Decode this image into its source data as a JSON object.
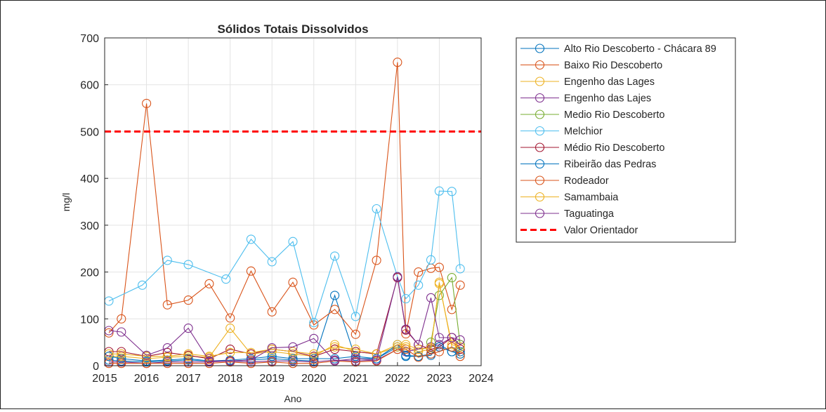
{
  "chart_data": {
    "type": "line",
    "title": "Sólidos Totais Dissolvidos",
    "xlabel": "Ano",
    "ylabel": "mg/l",
    "xlim": [
      2015,
      2024
    ],
    "ylim": [
      0,
      700
    ],
    "xticks": [
      "2015",
      "2016",
      "2017",
      "2018",
      "2019",
      "2020",
      "2021",
      "2022",
      "2023",
      "2024"
    ],
    "yticks": [
      "0",
      "100",
      "200",
      "300",
      "400",
      "500",
      "600",
      "700"
    ],
    "grid": true,
    "legend_position": "outside-right",
    "reference_line": {
      "name": "Valor Orientador",
      "y": 500,
      "color": "#ff0000"
    },
    "series": [
      {
        "name": "Alto Rio Descoberto - Chácara 89",
        "color": "#0072bd",
        "points": [
          [
            2015.1,
            12
          ],
          [
            2015.4,
            10
          ],
          [
            2016.0,
            8
          ],
          [
            2016.5,
            10
          ],
          [
            2017.0,
            12
          ],
          [
            2017.5,
            10
          ],
          [
            2018.0,
            10
          ],
          [
            2018.5,
            12
          ],
          [
            2019.0,
            15
          ],
          [
            2019.5,
            12
          ],
          [
            2020.0,
            10
          ],
          [
            2020.5,
            150
          ],
          [
            2021.0,
            15
          ],
          [
            2021.5,
            15
          ],
          [
            2022.0,
            40
          ],
          [
            2022.2,
            20
          ],
          [
            2022.5,
            20
          ],
          [
            2022.8,
            22
          ],
          [
            2023.0,
            45
          ],
          [
            2023.3,
            30
          ],
          [
            2023.5,
            30
          ]
        ]
      },
      {
        "name": "Baixo Rio Descoberto",
        "color": "#d95319",
        "points": [
          [
            2015.1,
            70
          ],
          [
            2015.4,
            100
          ],
          [
            2016.0,
            560
          ],
          [
            2016.5,
            130
          ],
          [
            2017.0,
            140
          ],
          [
            2017.5,
            175
          ],
          [
            2018.0,
            102
          ],
          [
            2018.5,
            202
          ],
          [
            2019.0,
            115
          ],
          [
            2019.5,
            178
          ],
          [
            2020.0,
            87
          ],
          [
            2020.5,
            120
          ],
          [
            2021.0,
            67
          ],
          [
            2021.5,
            225
          ],
          [
            2022.0,
            648
          ],
          [
            2022.2,
            68
          ],
          [
            2022.5,
            200
          ],
          [
            2022.8,
            208
          ],
          [
            2023.0,
            210
          ],
          [
            2023.3,
            120
          ],
          [
            2023.5,
            172
          ]
        ]
      },
      {
        "name": "Engenho das Lages",
        "color": "#edb120",
        "points": [
          [
            2015.1,
            20
          ],
          [
            2015.4,
            20
          ],
          [
            2016.0,
            15
          ],
          [
            2016.5,
            18
          ],
          [
            2017.0,
            20
          ],
          [
            2017.5,
            18
          ],
          [
            2018.0,
            80
          ],
          [
            2018.5,
            25
          ],
          [
            2019.0,
            30
          ],
          [
            2019.5,
            25
          ],
          [
            2020.0,
            20
          ],
          [
            2020.5,
            45
          ],
          [
            2021.0,
            30
          ],
          [
            2021.5,
            25
          ],
          [
            2022.0,
            40
          ],
          [
            2022.2,
            40
          ],
          [
            2022.5,
            30
          ],
          [
            2022.8,
            35
          ],
          [
            2023.0,
            178
          ],
          [
            2023.3,
            40
          ],
          [
            2023.5,
            25
          ]
        ]
      },
      {
        "name": "Engenho das Lajes",
        "color": "#7e2f8e",
        "points": [
          [
            2015.1,
            8
          ],
          [
            2015.4,
            8
          ],
          [
            2016.0,
            5
          ],
          [
            2016.5,
            8
          ],
          [
            2017.0,
            8
          ],
          [
            2017.5,
            8
          ],
          [
            2018.0,
            10
          ],
          [
            2018.5,
            8
          ],
          [
            2019.0,
            10
          ],
          [
            2019.5,
            10
          ],
          [
            2020.0,
            8
          ],
          [
            2020.5,
            12
          ],
          [
            2021.0,
            10
          ],
          [
            2021.5,
            12
          ],
          [
            2022.0,
            35
          ],
          [
            2022.2,
            30
          ],
          [
            2022.5,
            35
          ],
          [
            2022.8,
            40
          ],
          [
            2023.0,
            45
          ],
          [
            2023.3,
            60
          ],
          [
            2023.5,
            45
          ]
        ]
      },
      {
        "name": "Medio Rio Descoberto",
        "color": "#77ac30",
        "points": [
          [
            2022.8,
            50
          ],
          [
            2023.0,
            150
          ],
          [
            2023.3,
            188
          ],
          [
            2023.5,
            45
          ]
        ]
      },
      {
        "name": "Melchior",
        "color": "#4dbeee",
        "points": [
          [
            2015.1,
            138
          ],
          [
            2015.9,
            172
          ],
          [
            2016.5,
            225
          ],
          [
            2017.0,
            216
          ],
          [
            2017.9,
            185
          ],
          [
            2018.5,
            270
          ],
          [
            2019.0,
            222
          ],
          [
            2019.5,
            265
          ],
          [
            2020.0,
            92
          ],
          [
            2020.5,
            234
          ],
          [
            2021.0,
            105
          ],
          [
            2021.5,
            335
          ],
          [
            2022.0,
            190
          ],
          [
            2022.2,
            143
          ],
          [
            2022.5,
            172
          ],
          [
            2022.8,
            226
          ],
          [
            2023.0,
            373
          ],
          [
            2023.3,
            372
          ],
          [
            2023.5,
            207
          ]
        ]
      },
      {
        "name": "Médio Rio Descoberto",
        "color": "#a2142f",
        "points": [
          [
            2015.1,
            30
          ],
          [
            2015.4,
            30
          ],
          [
            2016.0,
            20
          ],
          [
            2016.5,
            28
          ],
          [
            2017.0,
            22
          ],
          [
            2017.5,
            15
          ],
          [
            2018.0,
            35
          ],
          [
            2018.5,
            25
          ],
          [
            2019.0,
            35
          ],
          [
            2019.5,
            30
          ],
          [
            2020.0,
            20
          ],
          [
            2020.5,
            35
          ],
          [
            2021.0,
            30
          ],
          [
            2021.5,
            25
          ],
          [
            2022.0,
            188
          ],
          [
            2022.2,
            76
          ],
          [
            2022.5,
            45
          ],
          [
            2022.8,
            35
          ],
          [
            2023.0,
            40
          ],
          [
            2023.3,
            60
          ],
          [
            2023.5,
            35
          ]
        ]
      },
      {
        "name": "Ribeirão das Pedras",
        "color": "#0072bd",
        "points": [
          [
            2015.1,
            20
          ],
          [
            2015.4,
            15
          ],
          [
            2016.0,
            10
          ],
          [
            2016.5,
            12
          ],
          [
            2017.0,
            15
          ],
          [
            2017.5,
            10
          ],
          [
            2018.0,
            12
          ],
          [
            2018.5,
            15
          ],
          [
            2019.0,
            20
          ],
          [
            2019.5,
            15
          ],
          [
            2020.0,
            15
          ],
          [
            2020.5,
            15
          ],
          [
            2021.0,
            20
          ],
          [
            2021.5,
            15
          ],
          [
            2022.0,
            45
          ],
          [
            2022.2,
            22
          ],
          [
            2022.5,
            20
          ],
          [
            2022.8,
            25
          ],
          [
            2023.0,
            40
          ],
          [
            2023.3,
            30
          ],
          [
            2023.5,
            25
          ]
        ]
      },
      {
        "name": "Rodeador",
        "color": "#d95319",
        "points": [
          [
            2015.1,
            5
          ],
          [
            2015.4,
            5
          ],
          [
            2016.0,
            5
          ],
          [
            2016.5,
            5
          ],
          [
            2017.0,
            5
          ],
          [
            2017.5,
            5
          ],
          [
            2018.0,
            8
          ],
          [
            2018.5,
            5
          ],
          [
            2019.0,
            8
          ],
          [
            2019.5,
            5
          ],
          [
            2020.0,
            5
          ],
          [
            2020.5,
            10
          ],
          [
            2021.0,
            8
          ],
          [
            2021.5,
            10
          ],
          [
            2022.0,
            35
          ],
          [
            2022.2,
            35
          ],
          [
            2022.5,
            18
          ],
          [
            2022.8,
            25
          ],
          [
            2023.0,
            30
          ],
          [
            2023.3,
            40
          ],
          [
            2023.5,
            20
          ]
        ]
      },
      {
        "name": "Samambaia",
        "color": "#edb120",
        "points": [
          [
            2015.1,
            25
          ],
          [
            2015.4,
            25
          ],
          [
            2016.0,
            20
          ],
          [
            2016.5,
            20
          ],
          [
            2017.0,
            25
          ],
          [
            2017.5,
            20
          ],
          [
            2018.0,
            28
          ],
          [
            2018.5,
            28
          ],
          [
            2019.0,
            35
          ],
          [
            2019.5,
            30
          ],
          [
            2020.0,
            25
          ],
          [
            2020.5,
            40
          ],
          [
            2021.0,
            35
          ],
          [
            2021.5,
            25
          ],
          [
            2022.0,
            45
          ],
          [
            2022.2,
            45
          ],
          [
            2022.5,
            35
          ],
          [
            2022.8,
            38
          ],
          [
            2023.0,
            175
          ],
          [
            2023.3,
            45
          ],
          [
            2023.5,
            40
          ]
        ]
      },
      {
        "name": "Taguatinga",
        "color": "#7e2f8e",
        "points": [
          [
            2015.1,
            75
          ],
          [
            2015.4,
            72
          ],
          [
            2016.0,
            22
          ],
          [
            2016.5,
            38
          ],
          [
            2017.0,
            80
          ],
          [
            2017.5,
            10
          ],
          [
            2018.0,
            10
          ],
          [
            2018.5,
            12
          ],
          [
            2019.0,
            38
          ],
          [
            2019.5,
            40
          ],
          [
            2020.0,
            58
          ],
          [
            2020.5,
            10
          ],
          [
            2021.0,
            15
          ],
          [
            2021.5,
            12
          ],
          [
            2022.0,
            190
          ],
          [
            2022.2,
            78
          ],
          [
            2022.5,
            45
          ],
          [
            2022.8,
            145
          ],
          [
            2023.0,
            60
          ],
          [
            2023.3,
            60
          ],
          [
            2023.5,
            55
          ]
        ]
      }
    ]
  }
}
